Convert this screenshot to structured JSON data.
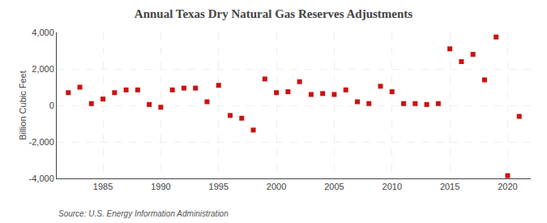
{
  "chart_data": {
    "type": "scatter",
    "title": "Annual Texas Dry Natural Gas Reserves Adjustments",
    "ylabel": "Billion Cubic Feet",
    "annotations": [
      "Source: U.S. Energy Information Administration"
    ],
    "x": [
      1982,
      1983,
      1984,
      1985,
      1986,
      1987,
      1988,
      1989,
      1990,
      1991,
      1992,
      1993,
      1994,
      1995,
      1996,
      1997,
      1998,
      1999,
      2000,
      2001,
      2002,
      2003,
      2004,
      2005,
      2006,
      2007,
      2008,
      2009,
      2010,
      2011,
      2012,
      2013,
      2014,
      2015,
      2016,
      2017,
      2018,
      2019,
      2020,
      2021
    ],
    "values": [
      700,
      1000,
      100,
      350,
      700,
      850,
      850,
      50,
      -100,
      850,
      950,
      950,
      200,
      1100,
      -550,
      -700,
      -1350,
      1450,
      700,
      750,
      1300,
      600,
      650,
      600,
      850,
      200,
      100,
      1050,
      750,
      100,
      100,
      50,
      100,
      3100,
      2400,
      2800,
      1400,
      3750,
      -3850,
      -600
    ],
    "color": "#CC1111",
    "marker": "square",
    "xlim": [
      1981,
      2022
    ],
    "ylim": [
      -4000,
      4000
    ],
    "xticks": [
      1985,
      1990,
      1995,
      2000,
      2005,
      2010,
      2015,
      2020
    ],
    "yticks": [
      {
        "value": -4000,
        "label": "-4,000"
      },
      {
        "value": -2000,
        "label": "-2,000"
      },
      0,
      {
        "value": 2000,
        "label": "2,000"
      },
      {
        "value": 4000,
        "label": "4,000"
      }
    ],
    "grid": true
  }
}
